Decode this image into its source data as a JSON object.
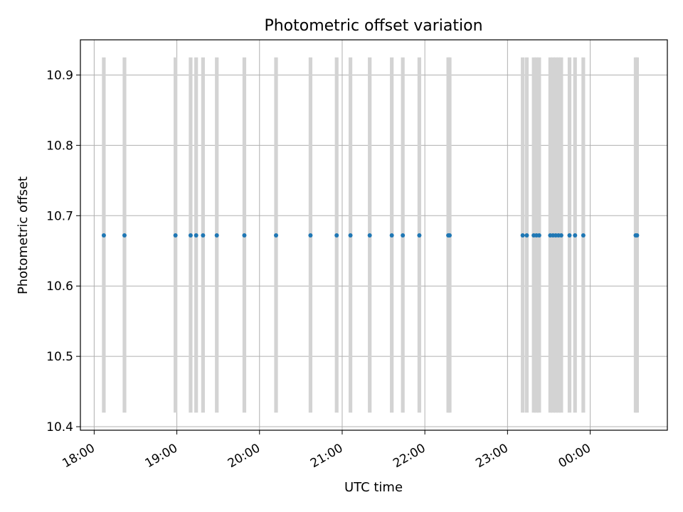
{
  "chart_data": {
    "type": "scatter",
    "title": "Photometric offset variation",
    "xlabel": "UTC time",
    "ylabel": "Photometric offset",
    "xlim": [
      "17:50",
      "00:56"
    ],
    "ylim": [
      10.395,
      10.95
    ],
    "x_ticks": [
      "18:00",
      "19:00",
      "20:00",
      "21:00",
      "22:00",
      "23:00",
      "00:00"
    ],
    "y_ticks": [
      10.4,
      10.5,
      10.6,
      10.7,
      10.8,
      10.9
    ],
    "grid": true,
    "band_range": [
      10.42,
      10.925
    ],
    "band_color": "#d3d3d3",
    "point_color": "#1f77b4",
    "series": [
      {
        "x": [
          "18:07",
          "18:22",
          "18:59",
          "19:10",
          "19:14",
          "19:19",
          "19:29",
          "19:49",
          "20:12",
          "20:37",
          "20:56",
          "21:06",
          "21:20",
          "21:36",
          "21:44",
          "21:56",
          "22:17",
          "22:18",
          "23:11",
          "23:14",
          "23:19",
          "23:21",
          "23:23",
          "23:31",
          "23:33",
          "23:35",
          "23:37",
          "23:39",
          "23:45",
          "23:49",
          "23:55",
          "00:33",
          "00:34"
        ],
        "y": [
          10.672,
          10.672,
          10.672,
          10.672,
          10.672,
          10.672,
          10.672,
          10.672,
          10.672,
          10.672,
          10.672,
          10.672,
          10.672,
          10.672,
          10.672,
          10.672,
          10.672,
          10.672,
          10.672,
          10.672,
          10.672,
          10.672,
          10.672,
          10.672,
          10.672,
          10.672,
          10.672,
          10.672,
          10.672,
          10.672,
          10.672,
          10.672,
          10.672
        ]
      }
    ]
  }
}
